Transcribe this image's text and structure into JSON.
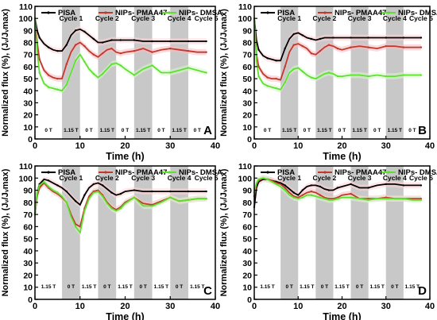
{
  "colors": {
    "pisa": "#000000",
    "pmaa": "#c0392b",
    "dmsa": "#5ee02f",
    "band": "#c8c8c8"
  },
  "chart_data": [
    {
      "panel": "A",
      "type": "line",
      "xlabel": "Time (h)",
      "ylabel": "Normalized flux (%), (Jᵥ/Jᵥmax)",
      "xlim": [
        0,
        40
      ],
      "ylim": [
        0,
        110
      ],
      "xticks": [
        "0",
        "10",
        "20",
        "30",
        "40"
      ],
      "yticks": [
        "0",
        "10",
        "20",
        "30",
        "40",
        "50",
        "60",
        "70",
        "80",
        "90",
        "100",
        "110"
      ],
      "bands": [
        [
          6,
          10
        ],
        [
          14,
          18
        ],
        [
          22,
          26
        ],
        [
          30,
          34
        ]
      ],
      "cycle_labels": [
        "Cycle 1",
        "Cycle 2",
        "Cycle 3",
        "Cycle 4",
        "Cycle 5"
      ],
      "field_labels": [
        "0 T",
        "1.15 T",
        "0 T",
        "1.15 T",
        "0 T",
        "1.15 T",
        "0 T",
        "1.15 T",
        "0 T"
      ],
      "series": [
        {
          "name": "PISA",
          "color_key": "pisa",
          "x": [
            0,
            0.5,
            1,
            2,
            3,
            4,
            5,
            6,
            7,
            8,
            9,
            10,
            11,
            12,
            13,
            14,
            15,
            16,
            17,
            18,
            19,
            20,
            22,
            24,
            26,
            28,
            30,
            32,
            34,
            36,
            38
          ],
          "y": [
            100,
            90,
            84,
            79,
            76,
            74,
            73,
            73,
            78,
            86,
            90,
            91,
            89,
            86,
            83,
            80,
            80,
            81,
            82,
            82,
            82,
            82,
            82,
            81,
            81,
            81,
            81,
            81,
            81,
            81,
            81
          ]
        },
        {
          "name": "NIPs- PMAA47",
          "color_key": "pmaa",
          "x": [
            0,
            0.5,
            1,
            2,
            3,
            4,
            5,
            6,
            7,
            8,
            9,
            10,
            11,
            12,
            13,
            14,
            15,
            16,
            17,
            18,
            19,
            20,
            22,
            24,
            26,
            28,
            30,
            32,
            34,
            36,
            38
          ],
          "y": [
            100,
            80,
            66,
            57,
            53,
            51,
            50,
            50,
            62,
            72,
            78,
            80,
            77,
            73,
            70,
            68,
            71,
            74,
            75,
            72,
            71,
            72,
            73,
            75,
            72,
            74,
            75,
            74,
            73,
            72,
            72
          ]
        },
        {
          "name": "NIPs- DMSA",
          "color_key": "dmsa",
          "x": [
            0,
            0.5,
            1,
            2,
            3,
            4,
            5,
            6,
            7,
            8,
            9,
            10,
            11,
            12,
            13,
            14,
            15,
            16,
            17,
            18,
            19,
            20,
            22,
            24,
            26,
            28,
            30,
            32,
            34,
            36,
            38
          ],
          "y": [
            100,
            72,
            55,
            46,
            43,
            42,
            41,
            40,
            45,
            55,
            65,
            70,
            64,
            58,
            54,
            51,
            54,
            58,
            62,
            63,
            61,
            58,
            53,
            58,
            61,
            55,
            55,
            57,
            59,
            57,
            55
          ]
        }
      ]
    },
    {
      "panel": "B",
      "type": "line",
      "xlabel": "Time (h)",
      "ylabel": "Normalized flux (%), (Jᵥ/Jᵥmax)",
      "xlim": [
        0,
        40
      ],
      "ylim": [
        0,
        110
      ],
      "xticks": [
        "0",
        "10",
        "20",
        "30",
        "40"
      ],
      "yticks": [
        "0",
        "10",
        "20",
        "30",
        "40",
        "50",
        "60",
        "70",
        "80",
        "90",
        "100",
        "110"
      ],
      "bands": [
        [
          6,
          10
        ],
        [
          14,
          18
        ],
        [
          22,
          26
        ],
        [
          30,
          34
        ]
      ],
      "cycle_labels": [
        "Cycle 1",
        "Cycle 2",
        "Cycle 3",
        "Cycle 4",
        "Cycle 5"
      ],
      "field_labels": [
        "0 T",
        "1.15 T",
        "0 T",
        "1.15 T",
        "0 T",
        "1.15 T",
        "0 T",
        "1.15 T",
        "0 T"
      ],
      "series": [
        {
          "name": "PISA",
          "color_key": "pisa",
          "x": [
            0,
            0.5,
            1,
            2,
            3,
            4,
            5,
            6,
            7,
            8,
            9,
            10,
            11,
            12,
            13,
            14,
            15,
            16,
            18,
            20,
            22,
            24,
            26,
            28,
            30,
            32,
            34,
            36,
            38
          ],
          "y": [
            100,
            82,
            74,
            69,
            67,
            66,
            65,
            65,
            75,
            83,
            87,
            88,
            86,
            84,
            83,
            82,
            83,
            84,
            84,
            84,
            84,
            84,
            84,
            84,
            84,
            84,
            84,
            84,
            84
          ]
        },
        {
          "name": "NIPs- PMAA47",
          "color_key": "pmaa",
          "x": [
            0,
            0.5,
            1,
            2,
            3,
            4,
            5,
            6,
            7,
            8,
            9,
            10,
            11,
            12,
            13,
            14,
            15,
            16,
            17,
            18,
            19,
            20,
            22,
            24,
            26,
            28,
            30,
            32,
            34,
            36,
            38
          ],
          "y": [
            100,
            70,
            60,
            54,
            51,
            50,
            50,
            49,
            60,
            72,
            78,
            79,
            77,
            75,
            71,
            70,
            73,
            76,
            78,
            77,
            75,
            74,
            76,
            77,
            76,
            75,
            77,
            77,
            76,
            76,
            76
          ]
        },
        {
          "name": "NIPs- DMSA",
          "color_key": "dmsa",
          "x": [
            0,
            0.5,
            1,
            2,
            3,
            4,
            5,
            6,
            7,
            8,
            9,
            10,
            11,
            12,
            13,
            14,
            15,
            16,
            17,
            18,
            19,
            20,
            22,
            24,
            26,
            28,
            30,
            32,
            34,
            36,
            38
          ],
          "y": [
            100,
            65,
            52,
            46,
            44,
            43,
            42,
            41,
            47,
            55,
            58,
            59,
            56,
            53,
            51,
            50,
            52,
            54,
            55,
            54,
            52,
            52,
            53,
            53,
            52,
            53,
            52,
            52,
            53,
            53,
            53
          ]
        }
      ]
    },
    {
      "panel": "C",
      "type": "line",
      "xlabel": "Time (h)",
      "ylabel": "Normalized flux (%), (Jᵥ/Jᵥmax)",
      "xlim": [
        0,
        40
      ],
      "ylim": [
        0,
        110
      ],
      "xticks": [
        "0",
        "10",
        "20",
        "30",
        "40"
      ],
      "yticks": [
        "0",
        "10",
        "20",
        "30",
        "40",
        "50",
        "60",
        "70",
        "80",
        "90",
        "100",
        "110"
      ],
      "bands": [
        [
          6,
          10
        ],
        [
          14,
          18
        ],
        [
          22,
          26
        ],
        [
          30,
          34
        ]
      ],
      "cycle_labels": [
        "Cycle 1",
        "Cycle 2",
        "Cycle 3",
        "Cycle 4",
        "Cycle 5"
      ],
      "field_labels": [
        "1.15 T",
        "0 T",
        "1.15 T",
        "0 T",
        "1.15 T",
        "0 T",
        "1.15 T",
        "0 T",
        "1.15 T"
      ],
      "series": [
        {
          "name": "PISA",
          "color_key": "pisa",
          "x": [
            0,
            0.5,
            1,
            2,
            3,
            4,
            5,
            6,
            7,
            8,
            9,
            10,
            11,
            12,
            13,
            14,
            15,
            16,
            17,
            18,
            19,
            20,
            22,
            24,
            26,
            28,
            30,
            32,
            34,
            36,
            38
          ],
          "y": [
            70,
            88,
            95,
            99,
            98,
            96,
            94,
            92,
            89,
            85,
            81,
            78,
            86,
            92,
            95,
            96,
            94,
            91,
            88,
            86,
            87,
            89,
            90,
            89,
            89,
            89,
            89,
            89,
            89,
            89,
            89
          ]
        },
        {
          "name": "NIPs- PMAA47",
          "color_key": "pmaa",
          "x": [
            0,
            0.5,
            1,
            2,
            3,
            4,
            5,
            6,
            7,
            8,
            9,
            10,
            11,
            12,
            13,
            14,
            15,
            16,
            17,
            18,
            19,
            20,
            22,
            24,
            26,
            28,
            30,
            32,
            34,
            36,
            38
          ],
          "y": [
            70,
            85,
            92,
            96,
            92,
            89,
            87,
            84,
            80,
            70,
            62,
            60,
            75,
            85,
            89,
            90,
            86,
            80,
            76,
            74,
            76,
            80,
            84,
            79,
            78,
            81,
            84,
            81,
            82,
            83,
            83
          ]
        },
        {
          "name": "NIPs- DMSA",
          "color_key": "dmsa",
          "x": [
            0,
            0.5,
            1,
            2,
            3,
            4,
            5,
            6,
            7,
            8,
            9,
            10,
            11,
            12,
            13,
            14,
            15,
            16,
            17,
            18,
            19,
            20,
            22,
            24,
            26,
            28,
            30,
            32,
            34,
            36,
            38
          ],
          "y": [
            70,
            88,
            94,
            97,
            93,
            90,
            88,
            85,
            80,
            68,
            60,
            55,
            73,
            83,
            88,
            89,
            85,
            79,
            75,
            73,
            75,
            79,
            84,
            77,
            77,
            80,
            84,
            81,
            82,
            83,
            83
          ]
        }
      ]
    },
    {
      "panel": "D",
      "type": "line",
      "xlabel": "Time (h)",
      "ylabel": "Normalized flux (%), (Jᵥ/Jᵥmax)",
      "xlim": [
        0,
        40
      ],
      "ylim": [
        0,
        110
      ],
      "xticks": [
        "0",
        "10",
        "20",
        "30",
        "40"
      ],
      "yticks": [
        "0",
        "10",
        "20",
        "30",
        "40",
        "50",
        "60",
        "70",
        "80",
        "90",
        "100",
        "110"
      ],
      "bands": [
        [
          6,
          10
        ],
        [
          14,
          18
        ],
        [
          22,
          26
        ],
        [
          30,
          34
        ]
      ],
      "cycle_labels": [
        "Cycle 1",
        "Cycle 2",
        "Cycle 3",
        "Cycle 4",
        "Cycle 5"
      ],
      "field_labels": [
        "1.15 T",
        "0 T",
        "1.15 T",
        "0 T",
        "1.15 T",
        "0 T",
        "1.15 T",
        "0 T",
        "1.15 T"
      ],
      "series": [
        {
          "name": "PISA",
          "color_key": "pisa",
          "x": [
            0,
            0.5,
            1,
            2,
            3,
            4,
            5,
            6,
            7,
            8,
            9,
            10,
            11,
            12,
            13,
            14,
            15,
            16,
            17,
            18,
            19,
            20,
            22,
            24,
            26,
            28,
            30,
            32,
            34,
            36,
            38
          ],
          "y": [
            76,
            92,
            97,
            99,
            99,
            98,
            97,
            96,
            94,
            91,
            88,
            86,
            90,
            93,
            94,
            94,
            93,
            91,
            90,
            90,
            92,
            93,
            95,
            92,
            92,
            94,
            95,
            95,
            94,
            94,
            94
          ]
        },
        {
          "name": "NIPs- PMAA47",
          "color_key": "pmaa",
          "x": [
            0,
            0.5,
            1,
            2,
            3,
            4,
            5,
            6,
            7,
            8,
            9,
            10,
            11,
            12,
            13,
            14,
            15,
            16,
            17,
            18,
            19,
            20,
            22,
            24,
            26,
            28,
            30,
            32,
            34,
            36,
            38
          ],
          "y": [
            85,
            95,
            98,
            100,
            99,
            98,
            96,
            95,
            92,
            88,
            85,
            84,
            86,
            88,
            89,
            88,
            86,
            84,
            83,
            83,
            84,
            86,
            87,
            83,
            83,
            83,
            84,
            83,
            83,
            83,
            83
          ]
        },
        {
          "name": "NIPs- DMSA",
          "color_key": "dmsa",
          "x": [
            0,
            0.5,
            1,
            2,
            3,
            4,
            5,
            6,
            7,
            8,
            9,
            10,
            11,
            12,
            13,
            14,
            15,
            16,
            17,
            18,
            19,
            20,
            22,
            24,
            26,
            28,
            30,
            32,
            34,
            36,
            38
          ],
          "y": [
            88,
            96,
            99,
            100,
            99,
            97,
            95,
            93,
            90,
            86,
            84,
            83,
            84,
            86,
            86,
            85,
            84,
            83,
            82,
            82,
            83,
            84,
            84,
            83,
            82,
            83,
            83,
            83,
            83,
            82,
            82
          ]
        }
      ]
    }
  ]
}
